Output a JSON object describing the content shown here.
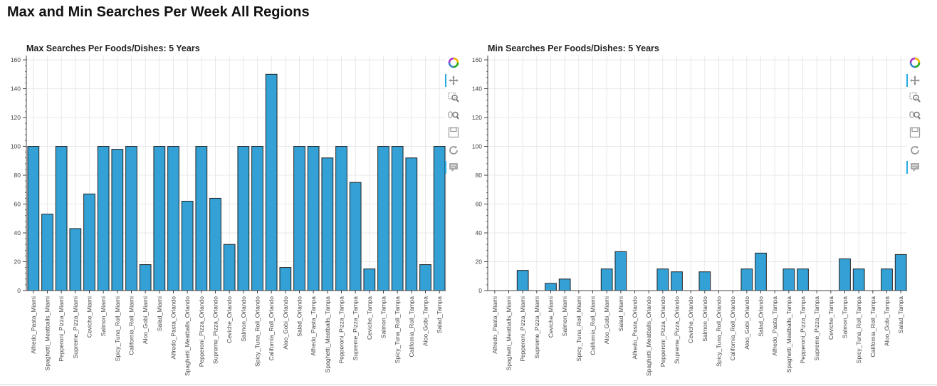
{
  "page": {
    "title": "Max and Min Searches Per Week All Regions"
  },
  "colors": {
    "bar_fill": "#33a1d6",
    "bar_stroke": "#222222",
    "grid": "#e8e8e8",
    "axis": "#444444"
  },
  "toolbar": {
    "tools": [
      {
        "name": "bokeh-logo-icon",
        "active": false
      },
      {
        "name": "pan-icon",
        "active": true
      },
      {
        "name": "box-zoom-icon",
        "active": false
      },
      {
        "name": "wheel-zoom-icon",
        "active": false
      },
      {
        "name": "save-icon",
        "active": false
      },
      {
        "name": "reset-icon",
        "active": false
      },
      {
        "name": "hover-icon",
        "active": true
      }
    ]
  },
  "chart_data": [
    {
      "type": "bar",
      "title": "Max Searches Per Foods/Dishes: 5 Years",
      "xlabel": "",
      "ylabel": "",
      "ylim": [
        0,
        163
      ],
      "yticks": [
        0,
        20,
        40,
        60,
        80,
        100,
        120,
        140,
        160
      ],
      "grid": true,
      "categories": [
        "Alfredo_Pasta_Miami",
        "Spaghetti_Meatballs_Miami",
        "Pepperoni_Pizza_Miami",
        "Supreme_Pizza_Miami",
        "Ceviche_Miami",
        "Salmon_Miami",
        "Spicy_Tuna_Roll_Miami",
        "California_Roll_Miami",
        "Aloo_Gobi_Miami",
        "Salad_Miami",
        "Alfredo_Pasta_Orlando",
        "Spaghetti_Meatballs_Orlando",
        "Pepperoni_Pizza_Orlando",
        "Supreme_Pizza_Orlando",
        "Ceviche_Orlando",
        "Salmon_Orlando",
        "Spicy_Tuna_Roll_Orlando",
        "California_Roll_Orlando",
        "Aloo_Gobi_Orlando",
        "Salad_Orlando",
        "Alfredo_Pasta_Tampa",
        "Spaghetti_Meatballs_Tampa",
        "Pepperoni_Pizza_Tampa",
        "Supreme_Pizza_Tampa",
        "Ceviche_Tampa",
        "Salmon_Tampa",
        "Spicy_Tuna_Roll_Tampa",
        "California_Roll_Tampa",
        "Aloo_Gobi_Tampa",
        "Salad_Tampa"
      ],
      "values": [
        100,
        53,
        100,
        43,
        67,
        100,
        98,
        100,
        18,
        100,
        100,
        62,
        100,
        64,
        32,
        100,
        100,
        150,
        16,
        100,
        100,
        92,
        100,
        75,
        15,
        100,
        100,
        92,
        18,
        100
      ]
    },
    {
      "type": "bar",
      "title": "Min Searches Per Foods/Dishes: 5 Years",
      "xlabel": "",
      "ylabel": "",
      "ylim": [
        0,
        163
      ],
      "yticks": [
        0,
        20,
        40,
        60,
        80,
        100,
        120,
        140,
        160
      ],
      "grid": true,
      "categories": [
        "Alfredo_Pasta_Miami",
        "Spaghetti_Meatballs_Miami",
        "Pepperoni_Pizza_Miami",
        "Supreme_Pizza_Miami",
        "Ceviche_Miami",
        "Salmon_Miami",
        "Spicy_Tuna_Roll_Miami",
        "California_Roll_Miami",
        "Aloo_Gobi_Miami",
        "Salad_Miami",
        "Alfredo_Pasta_Orlando",
        "Spaghetti_Meatballs_Orlando",
        "Pepperoni_Pizza_Orlando",
        "Supreme_Pizza_Orlando",
        "Ceviche_Orlando",
        "Salmon_Orlando",
        "Spicy_Tuna_Roll_Orlando",
        "California_Roll_Orlando",
        "Aloo_Gobi_Orlando",
        "Salad_Orlando",
        "Alfredo_Pasta_Tampa",
        "Spaghetti_Meatballs_Tampa",
        "Pepperoni_Pizza_Tampa",
        "Supreme_Pizza_Tampa",
        "Ceviche_Tampa",
        "Salmon_Tampa",
        "Spicy_Tuna_Roll_Tampa",
        "California_Roll_Tampa",
        "Aloo_Gobi_Tampa",
        "Salad_Tampa"
      ],
      "values": [
        0,
        0,
        14,
        0,
        5,
        8,
        0,
        0,
        15,
        27,
        0,
        0,
        15,
        13,
        0,
        13,
        0,
        0,
        15,
        26,
        0,
        15,
        15,
        0,
        0,
        22,
        15,
        0,
        15,
        25
      ]
    }
  ]
}
